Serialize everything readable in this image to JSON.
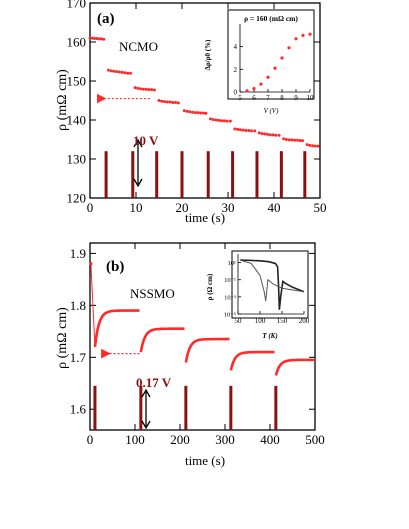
{
  "colors": {
    "marker": "#ff2a2a",
    "pulse": "#8b1010",
    "pulse_label": "#8b1010",
    "axis": "#000000",
    "frame": "#000000",
    "inset_curve": "#222222"
  },
  "chart_data": [
    {
      "id": "panel-a",
      "type": "scatter",
      "panel_label": "(a)",
      "sample_label": "NCMO",
      "xlabel": "time (s)",
      "ylabel": "ρ (mΩ cm)",
      "xlim": [
        0,
        50
      ],
      "ylim": [
        120,
        170
      ],
      "xticks": [
        0,
        10,
        20,
        30,
        40,
        50
      ],
      "yticks": [
        120,
        130,
        140,
        150,
        160,
        170
      ],
      "pulse_label": "10 V",
      "pulses_x": [
        3.5,
        9.3,
        14.5,
        20.0,
        25.7,
        31.0,
        36.3,
        41.6,
        46.7
      ],
      "pulse_height": [
        120,
        132
      ],
      "series": [
        {
          "x": [
            0.0,
            0.5,
            1.0,
            1.5,
            2.0,
            2.5,
            3.0
          ],
          "y": [
            161.0,
            161.0,
            160.9,
            160.9,
            160.8,
            160.8,
            160.7
          ]
        },
        {
          "x": [
            4.0,
            4.6,
            5.2,
            5.8,
            6.4,
            7.0,
            7.6,
            8.2,
            8.8
          ],
          "y": [
            152.8,
            152.6,
            152.5,
            152.4,
            152.3,
            152.2,
            152.1,
            152.0,
            152.0
          ]
        },
        {
          "x": [
            9.8,
            10.4,
            11.0,
            11.6,
            12.2,
            12.8,
            13.4,
            14.0
          ],
          "y": [
            148.3,
            148.1,
            148.0,
            147.9,
            147.9,
            147.8,
            147.8,
            147.7
          ]
        },
        {
          "x": [
            15.0,
            15.6,
            16.2,
            16.8,
            17.4,
            18.0,
            18.6,
            19.2
          ],
          "y": [
            145.0,
            144.8,
            144.7,
            144.6,
            144.6,
            144.5,
            144.5,
            144.4
          ]
        },
        {
          "x": [
            20.5,
            21.1,
            21.7,
            22.3,
            22.9,
            23.5,
            24.1,
            24.7,
            25.2
          ],
          "y": [
            142.4,
            142.2,
            142.1,
            142.0,
            141.9,
            141.9,
            141.8,
            141.8,
            141.7
          ]
        },
        {
          "x": [
            26.2,
            26.8,
            27.4,
            28.0,
            28.6,
            29.2,
            29.8,
            30.5
          ],
          "y": [
            140.3,
            140.1,
            140.0,
            139.9,
            139.8,
            139.8,
            139.7,
            139.7
          ]
        },
        {
          "x": [
            31.5,
            32.1,
            32.7,
            33.3,
            33.9,
            34.5,
            35.1,
            35.8
          ],
          "y": [
            137.7,
            137.6,
            137.5,
            137.4,
            137.3,
            137.3,
            137.2,
            137.2
          ]
        },
        {
          "x": [
            36.8,
            37.4,
            38.0,
            38.6,
            39.2,
            39.8,
            40.4,
            41.1
          ],
          "y": [
            136.7,
            136.5,
            136.4,
            136.3,
            136.2,
            136.2,
            136.1,
            136.1
          ]
        },
        {
          "x": [
            42.1,
            42.7,
            43.3,
            43.9,
            44.5,
            45.1,
            45.7,
            46.2
          ],
          "y": [
            135.2,
            135.0,
            134.9,
            134.9,
            134.8,
            134.8,
            134.7,
            134.7
          ]
        },
        {
          "x": [
            47.2,
            47.8,
            48.4,
            49.0,
            49.6
          ],
          "y": [
            133.7,
            133.5,
            133.4,
            133.3,
            133.3
          ]
        }
      ],
      "arrow": {
        "x_from": 13,
        "x_to": 2,
        "y": 145.5
      },
      "inset": {
        "type": "scatter",
        "annotation": "ρ = 160 (mΩ cm)",
        "xlabel": "V (V)",
        "ylabel": "Δρ/ρ0 (%)",
        "xlim": [
          5,
          10
        ],
        "ylim": [
          0,
          6
        ],
        "xticks": [
          5,
          6,
          7,
          8,
          9,
          10
        ],
        "yticks": [
          0,
          2,
          4
        ],
        "x": [
          5.5,
          6.0,
          6.5,
          7.0,
          7.5,
          8.0,
          8.5,
          9.0,
          9.5,
          10.0
        ],
        "y": [
          0.1,
          0.3,
          0.7,
          1.3,
          2.1,
          3.0,
          3.9,
          4.7,
          5.0,
          5.1
        ]
      }
    },
    {
      "id": "panel-b",
      "type": "line",
      "panel_label": "(b)",
      "sample_label": "NSSMO",
      "xlabel": "time (s)",
      "ylabel": "ρ (mΩ cm)",
      "xlim": [
        0,
        500
      ],
      "ylim": [
        1.56,
        1.92
      ],
      "xticks": [
        0,
        100,
        200,
        300,
        400,
        500
      ],
      "yticks": [
        1.6,
        1.7,
        1.8,
        1.9
      ],
      "pulse_label": "0.17 V",
      "pulses_x": [
        11,
        113,
        213,
        313,
        413
      ],
      "pulse_height": [
        1.56,
        1.645
      ],
      "initial_point": {
        "x": 2,
        "y": 1.88
      },
      "segments": [
        {
          "x0": 11,
          "x1": 110,
          "start": 1.72,
          "end": 1.79
        },
        {
          "x0": 113,
          "x1": 210,
          "start": 1.71,
          "end": 1.755
        },
        {
          "x0": 213,
          "x1": 310,
          "start": 1.69,
          "end": 1.735
        },
        {
          "x0": 313,
          "x1": 410,
          "start": 1.675,
          "end": 1.71
        },
        {
          "x0": 413,
          "x1": 500,
          "start": 1.665,
          "end": 1.695
        }
      ],
      "arrow": {
        "x_from": 110,
        "x_to": 30,
        "y": 1.707
      },
      "inset": {
        "type": "line",
        "xlabel": "T (K)",
        "ylabel": "ρ (Ω cm)",
        "xlim": [
          50,
          200
        ],
        "xticks": [
          50,
          100,
          150,
          200
        ],
        "ytick_labels": [
          "10¹",
          "10⁻¹",
          "10⁻³",
          "10⁻⁵"
        ],
        "ylog_range": [
          -5,
          2
        ]
      }
    }
  ]
}
